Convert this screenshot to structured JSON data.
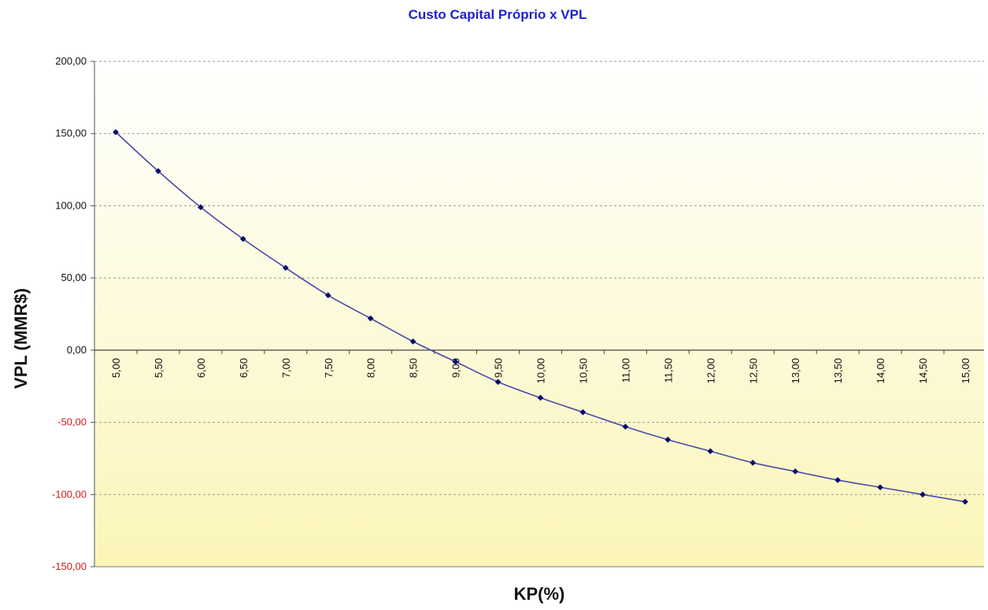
{
  "colors": {
    "title": "#1f1fd6",
    "series_line": "#4a4aa8",
    "series_marker": "#0a0a6e",
    "negative_tick": "#d11a1a",
    "plot_bg_top": "#ffffff",
    "plot_bg_bottom": "#fbf5b8",
    "grid": "#9a9a9a"
  },
  "chart_data": {
    "type": "line",
    "title": "Custo Capital Próprio x VPL",
    "xlabel": "KP(%)",
    "ylabel": "VPL (MMR$)",
    "categories": [
      "5,00",
      "5,50",
      "6,00",
      "6,50",
      "7,00",
      "7,50",
      "8,00",
      "8,50",
      "9,00",
      "9,50",
      "10,00",
      "10,50",
      "11,00",
      "11,50",
      "12,00",
      "12,50",
      "13,00",
      "13,50",
      "14,00",
      "14,50",
      "15,00"
    ],
    "series": [
      {
        "name": "VPL",
        "values": [
          151,
          124,
          99,
          77,
          57,
          38,
          22,
          6,
          -8,
          -22,
          -33,
          -43,
          -53,
          -62,
          -70,
          -78,
          -84,
          -90,
          -95,
          -100,
          -105
        ]
      }
    ],
    "ylim": [
      -150,
      200
    ],
    "yticks": [
      200,
      150,
      100,
      50,
      0,
      -50,
      -100,
      -150
    ],
    "ytick_labels": [
      "200,00",
      "150,00",
      "100,00",
      "50,00",
      "0,00",
      "-50,00",
      "-100,00",
      "-150,00"
    ],
    "grid": true,
    "legend": "none"
  }
}
